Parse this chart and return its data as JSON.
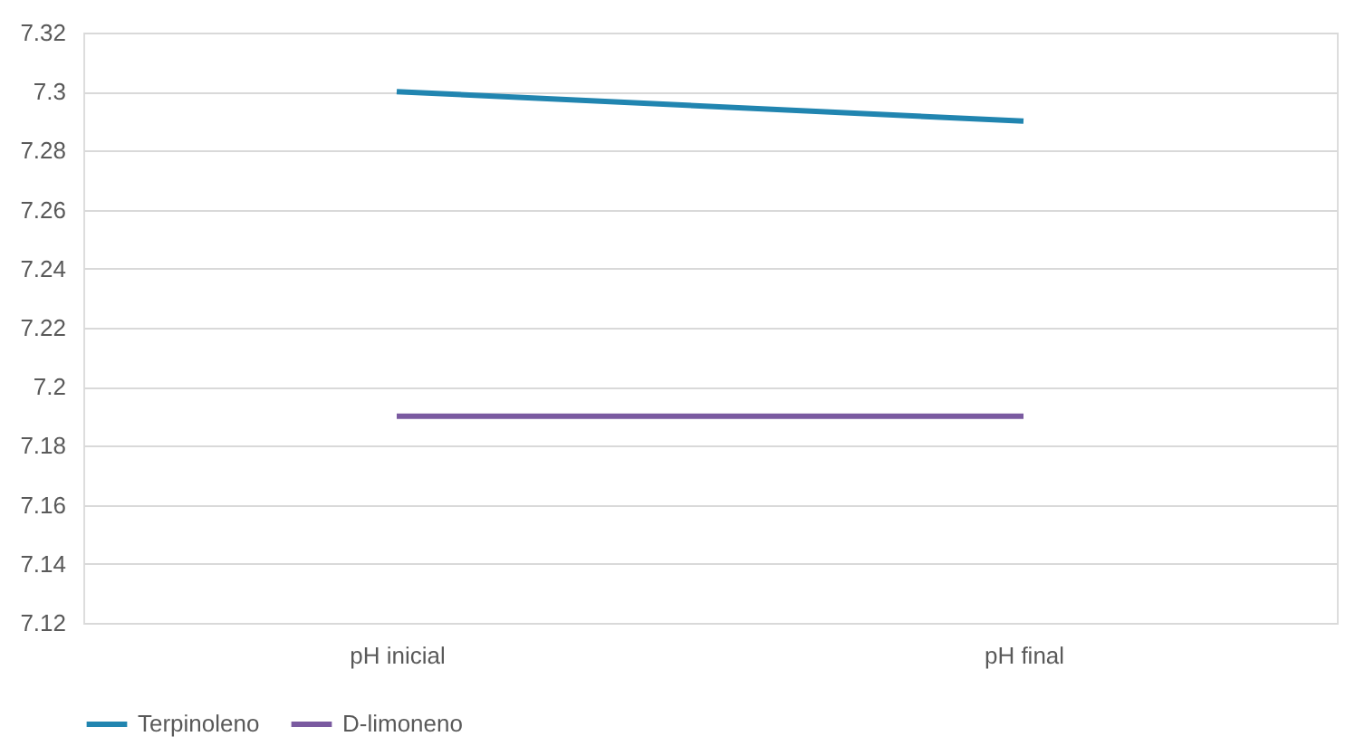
{
  "chart_data": {
    "type": "line",
    "categories": [
      "pH inicial",
      "pH final"
    ],
    "series": [
      {
        "name": "Terpinoleno",
        "color": "#2185b0",
        "values": [
          7.3,
          7.29
        ]
      },
      {
        "name": "D-limoneno",
        "color": "#7a5aa0",
        "values": [
          7.19,
          7.19
        ]
      }
    ],
    "ylim": [
      7.12,
      7.32
    ],
    "yticks": [
      7.12,
      7.14,
      7.16,
      7.18,
      7.2,
      7.22,
      7.24,
      7.26,
      7.28,
      7.3,
      7.32
    ],
    "grid": "y",
    "legend": "bottom",
    "marker": "none",
    "line_style": "solid"
  }
}
